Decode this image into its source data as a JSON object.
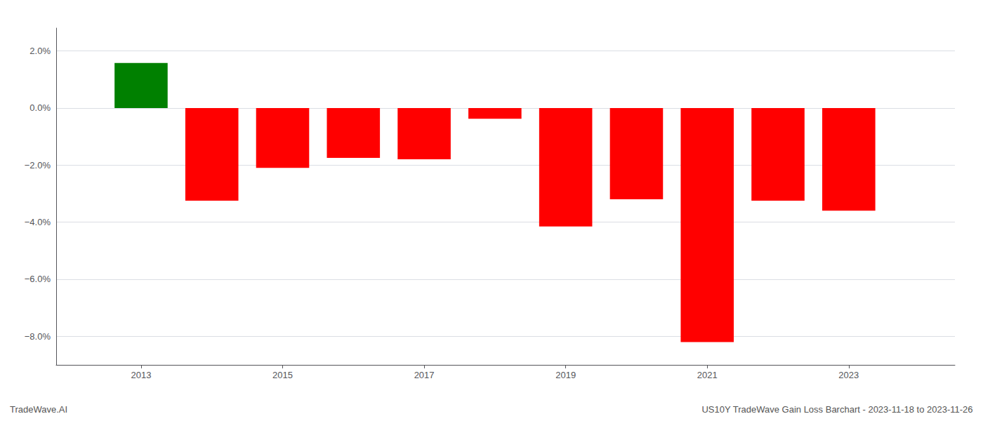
{
  "chart_data": {
    "type": "bar",
    "x": [
      2013,
      2014,
      2015,
      2016,
      2017,
      2018,
      2019,
      2020,
      2021,
      2022,
      2023
    ],
    "values": [
      1.58,
      -3.25,
      -2.1,
      -1.75,
      -1.8,
      -0.38,
      -4.15,
      -3.2,
      -8.2,
      -3.25,
      -3.6
    ],
    "colors": [
      "#008000",
      "#ff0000",
      "#ff0000",
      "#ff0000",
      "#ff0000",
      "#ff0000",
      "#ff0000",
      "#ff0000",
      "#ff0000",
      "#ff0000",
      "#ff0000"
    ],
    "xlim": [
      2011.8,
      2024.5
    ],
    "xticks": [
      2013,
      2015,
      2017,
      2019,
      2021,
      2023
    ],
    "ylim": [
      -9.0,
      2.8
    ],
    "yticks": [
      {
        "value": 2.0,
        "label": "2.0%"
      },
      {
        "value": 0.0,
        "label": "0.0%"
      },
      {
        "value": -2.0,
        "label": "−2.0%"
      },
      {
        "value": -4.0,
        "label": "−4.0%"
      },
      {
        "value": -6.0,
        "label": "−6.0%"
      },
      {
        "value": -8.0,
        "label": "−8.0%"
      }
    ],
    "grid": true,
    "annotations": [
      "TradeWave.AI",
      "US10Y TradeWave Gain Loss Barchart - 2023-11-18 to 2023-11-26"
    ]
  }
}
